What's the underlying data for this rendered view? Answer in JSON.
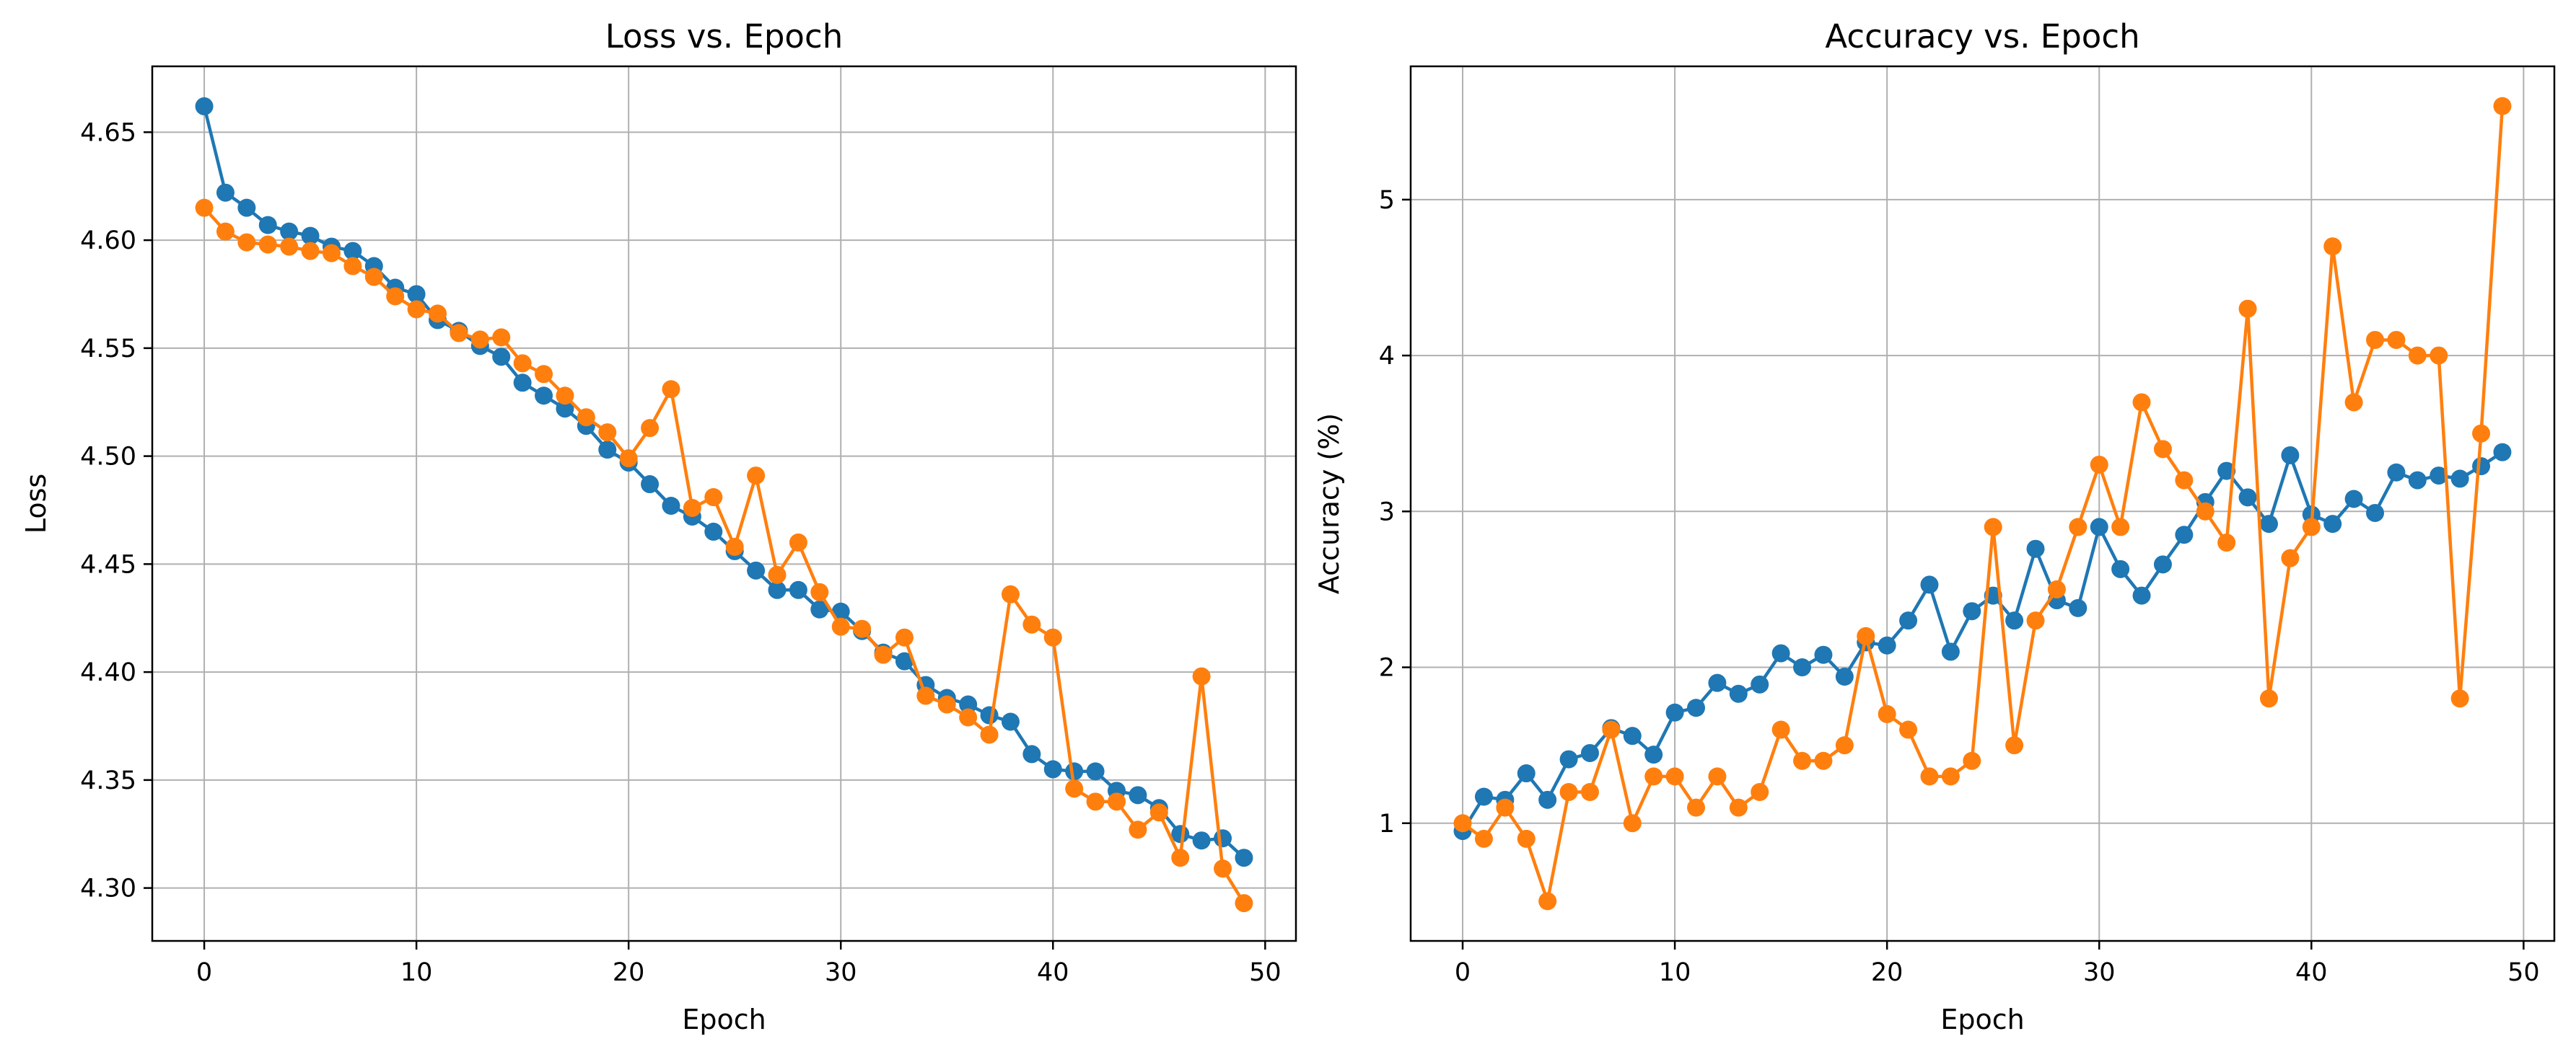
{
  "chart_data": [
    {
      "type": "line",
      "title": "Loss vs. Epoch",
      "xlabel": "Epoch",
      "ylabel": "Loss",
      "xlim": [
        -2.45,
        51.45
      ],
      "ylim": [
        4.2755,
        4.6805
      ],
      "xticks": [
        0,
        10,
        20,
        30,
        40,
        50
      ],
      "yticks": [
        4.3,
        4.35,
        4.4,
        4.45,
        4.5,
        4.55,
        4.6,
        4.65
      ],
      "ytick_labels": [
        "4.30",
        "4.35",
        "4.40",
        "4.45",
        "4.50",
        "4.55",
        "4.60",
        "4.65"
      ],
      "grid": true,
      "x": [
        0,
        1,
        2,
        3,
        4,
        5,
        6,
        7,
        8,
        9,
        10,
        11,
        12,
        13,
        14,
        15,
        16,
        17,
        18,
        19,
        20,
        21,
        22,
        23,
        24,
        25,
        26,
        27,
        28,
        29,
        30,
        31,
        32,
        33,
        34,
        35,
        36,
        37,
        38,
        39,
        40,
        41,
        42,
        43,
        44,
        45,
        46,
        47,
        48,
        49
      ],
      "series": [
        {
          "color": "#1f77b4",
          "values": [
            4.662,
            4.622,
            4.615,
            4.607,
            4.604,
            4.602,
            4.597,
            4.595,
            4.588,
            4.578,
            4.575,
            4.563,
            4.558,
            4.551,
            4.546,
            4.534,
            4.528,
            4.522,
            4.514,
            4.503,
            4.497,
            4.487,
            4.477,
            4.472,
            4.465,
            4.456,
            4.447,
            4.438,
            4.438,
            4.429,
            4.428,
            4.419,
            4.409,
            4.405,
            4.394,
            4.388,
            4.385,
            4.38,
            4.377,
            4.362,
            4.355,
            4.354,
            4.354,
            4.345,
            4.343,
            4.337,
            4.325,
            4.322,
            4.323,
            4.314
          ]
        },
        {
          "color": "#ff7f0e",
          "values": [
            4.615,
            4.604,
            4.599,
            4.598,
            4.597,
            4.595,
            4.594,
            4.588,
            4.583,
            4.574,
            4.568,
            4.566,
            4.557,
            4.554,
            4.555,
            4.543,
            4.538,
            4.528,
            4.518,
            4.511,
            4.499,
            4.513,
            4.531,
            4.476,
            4.481,
            4.458,
            4.491,
            4.445,
            4.46,
            4.437,
            4.421,
            4.42,
            4.408,
            4.416,
            4.389,
            4.385,
            4.379,
            4.371,
            4.436,
            4.422,
            4.416,
            4.346,
            4.34,
            4.34,
            4.327,
            4.335,
            4.314,
            4.398,
            4.309,
            4.293
          ]
        }
      ]
    },
    {
      "type": "line",
      "title": "Accuracy vs. Epoch",
      "xlabel": "Epoch",
      "ylabel": "Accuracy (%)",
      "xlim": [
        -2.45,
        51.45
      ],
      "ylim": [
        0.245,
        5.855
      ],
      "xticks": [
        0,
        10,
        20,
        30,
        40,
        50
      ],
      "yticks": [
        1,
        2,
        3,
        4,
        5
      ],
      "ytick_labels": [
        "1",
        "2",
        "3",
        "4",
        "5"
      ],
      "grid": true,
      "x": [
        0,
        1,
        2,
        3,
        4,
        5,
        6,
        7,
        8,
        9,
        10,
        11,
        12,
        13,
        14,
        15,
        16,
        17,
        18,
        19,
        20,
        21,
        22,
        23,
        24,
        25,
        26,
        27,
        28,
        29,
        30,
        31,
        32,
        33,
        34,
        35,
        36,
        37,
        38,
        39,
        40,
        41,
        42,
        43,
        44,
        45,
        46,
        47,
        48,
        49
      ],
      "series": [
        {
          "color": "#1f77b4",
          "values": [
            0.95,
            1.17,
            1.15,
            1.32,
            1.15,
            1.41,
            1.45,
            1.61,
            1.56,
            1.44,
            1.71,
            1.74,
            1.9,
            1.83,
            1.89,
            2.09,
            2.0,
            2.08,
            1.94,
            2.16,
            2.14,
            2.3,
            2.53,
            2.1,
            2.36,
            2.46,
            2.3,
            2.76,
            2.43,
            2.38,
            2.9,
            2.63,
            2.46,
            2.66,
            2.85,
            3.06,
            3.26,
            3.09,
            2.92,
            3.36,
            2.98,
            2.92,
            3.08,
            2.99,
            3.25,
            3.2,
            3.23,
            3.21,
            3.29,
            3.38
          ]
        },
        {
          "color": "#ff7f0e",
          "values": [
            1.0,
            0.9,
            1.1,
            0.9,
            0.5,
            1.2,
            1.2,
            1.6,
            1.0,
            1.3,
            1.3,
            1.1,
            1.3,
            1.1,
            1.2,
            1.6,
            1.4,
            1.4,
            1.5,
            2.2,
            1.7,
            1.6,
            1.3,
            1.3,
            1.4,
            2.9,
            1.5,
            2.3,
            2.5,
            2.9,
            3.3,
            2.9,
            3.7,
            3.4,
            3.2,
            3.0,
            2.8,
            4.3,
            1.8,
            2.7,
            2.9,
            4.7,
            3.7,
            4.1,
            4.1,
            4.0,
            4.0,
            1.8,
            3.5,
            5.6
          ]
        }
      ]
    }
  ]
}
